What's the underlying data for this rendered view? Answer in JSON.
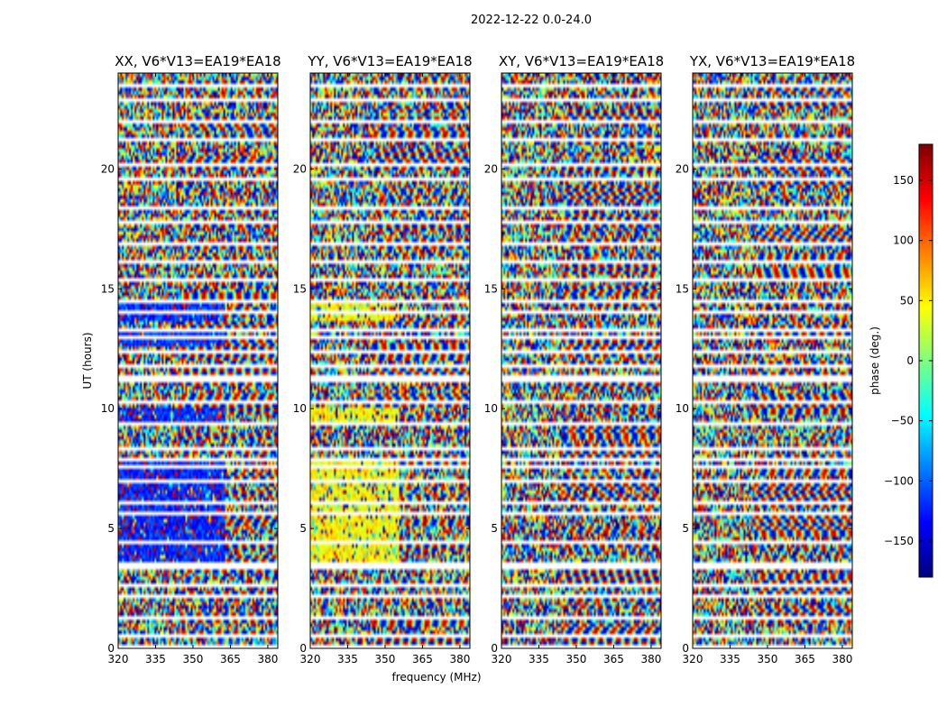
{
  "chart_data": {
    "type": "heatmap",
    "suptitle": "2022-12-22 0.0-24.0",
    "xlabel": "frequency (MHz)",
    "ylabel": "UT (hours)",
    "xlim": [
      320,
      384
    ],
    "ylim": [
      0,
      24
    ],
    "xticks": [
      320,
      335,
      350,
      365,
      380
    ],
    "yticks": [
      0,
      5,
      10,
      15,
      20
    ],
    "panels": [
      {
        "title": "XX, V6*V13=EA19*EA18",
        "bias": "blue"
      },
      {
        "title": "YY, V6*V13=EA19*EA18",
        "bias": "yellow"
      },
      {
        "title": "XY, V6*V13=EA19*EA18",
        "bias": "none"
      },
      {
        "title": "YX, V6*V13=EA19*EA18",
        "bias": "none"
      }
    ],
    "colorbar": {
      "label": "phase (deg.)",
      "colormap": "jet",
      "range": [
        -180,
        180
      ],
      "ticks": [
        150,
        100,
        50,
        0,
        -50,
        -100,
        -150
      ],
      "tick_labels": [
        "150",
        "100",
        "50",
        "0",
        "−50",
        "−100",
        "−150"
      ]
    },
    "flagged_ut_hours": [
      0.15,
      0.6,
      1.3,
      2.2,
      2.7,
      3.4,
      3.6,
      4.5,
      5.7,
      6.1,
      7.0,
      7.6,
      8.0,
      8.4,
      9.5,
      10.3,
      11.2,
      11.4,
      11.8,
      12.4,
      13.0,
      13.3,
      14.1,
      14.5,
      15.5,
      16.2,
      17.0,
      17.9,
      18.5,
      19.6,
      20.2,
      21.3,
      22.1,
      22.9,
      23.6
    ]
  }
}
